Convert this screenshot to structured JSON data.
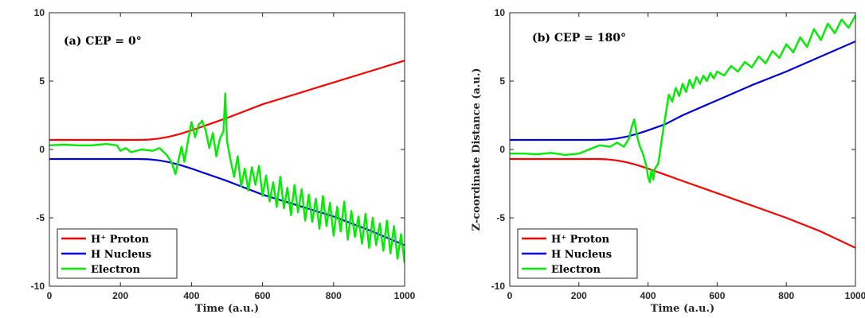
{
  "chart_data": [
    {
      "type": "line",
      "annotation": "(a) CEP = 0°",
      "xlabel": "Time (a.u.)",
      "ylabel": "",
      "xlim": [
        0,
        1000
      ],
      "ylim": [
        -10,
        10
      ],
      "xticks": [
        "0",
        "200",
        "400",
        "600",
        "800",
        "1000"
      ],
      "yticks": [
        "-10",
        "-5",
        "0",
        "5",
        "10"
      ],
      "legend_placement": "bottom-left",
      "series": [
        {
          "name": "H⁺ Proton",
          "color": "#ff0000",
          "x": [
            0,
            250,
            280,
            310,
            340,
            370,
            400,
            450,
            500,
            600,
            700,
            800,
            900,
            1000
          ],
          "y": [
            0.7,
            0.7,
            0.72,
            0.8,
            0.95,
            1.15,
            1.4,
            1.85,
            2.3,
            3.3,
            4.1,
            4.9,
            5.7,
            6.5
          ]
        },
        {
          "name": "H Nucleus",
          "color": "#0000dd",
          "x": [
            0,
            250,
            280,
            310,
            340,
            370,
            400,
            450,
            500,
            600,
            700,
            800,
            900,
            1000
          ],
          "y": [
            -0.7,
            -0.7,
            -0.72,
            -0.8,
            -0.95,
            -1.15,
            -1.4,
            -1.85,
            -2.3,
            -3.3,
            -4.1,
            -4.9,
            -5.9,
            -7.0
          ]
        },
        {
          "name": "Electron",
          "color": "#00ee00",
          "x": [
            0,
            40,
            80,
            120,
            160,
            190,
            200,
            215,
            230,
            260,
            290,
            310,
            330,
            345,
            355,
            365,
            372,
            380,
            390,
            400,
            410,
            420,
            430,
            440,
            450,
            460,
            470,
            480,
            490,
            495,
            500,
            510,
            520,
            530,
            540,
            550,
            560,
            570,
            580,
            590,
            600,
            610,
            620,
            630,
            640,
            650,
            660,
            670,
            680,
            690,
            700,
            710,
            720,
            730,
            740,
            750,
            760,
            770,
            780,
            790,
            800,
            810,
            820,
            830,
            840,
            850,
            860,
            870,
            880,
            890,
            900,
            910,
            920,
            930,
            940,
            950,
            960,
            970,
            980,
            990,
            1000
          ],
          "y": [
            0.3,
            0.35,
            0.3,
            0.3,
            0.4,
            0.3,
            -0.1,
            0.1,
            -0.2,
            0.0,
            -0.1,
            0.1,
            -0.4,
            -1.0,
            -1.8,
            -0.6,
            0.2,
            -0.9,
            0.6,
            2.0,
            0.9,
            1.8,
            2.1,
            1.4,
            0.1,
            1.2,
            -0.5,
            0.8,
            1.3,
            4.1,
            0.6,
            -0.8,
            -2.0,
            -0.5,
            -2.7,
            -1.4,
            -3.0,
            -1.3,
            -2.6,
            -1.2,
            -3.4,
            -1.9,
            -3.8,
            -2.4,
            -4.2,
            -2.0,
            -4.3,
            -2.8,
            -4.8,
            -2.6,
            -4.6,
            -2.9,
            -5.2,
            -3.3,
            -5.3,
            -3.6,
            -5.8,
            -3.4,
            -5.6,
            -3.9,
            -6.3,
            -4.2,
            -6.0,
            -3.8,
            -6.6,
            -4.5,
            -6.4,
            -4.9,
            -6.9,
            -4.7,
            -7.2,
            -5.0,
            -7.0,
            -5.4,
            -7.4,
            -5.2,
            -7.6,
            -5.6,
            -8.0,
            -6.2,
            -8.3
          ]
        }
      ]
    },
    {
      "type": "line",
      "annotation": "(b) CEP = 180°",
      "xlabel": "Time (a.u.)",
      "ylabel": "Z-coordinate Distance (a.u.)",
      "xlim": [
        0,
        1000
      ],
      "ylim": [
        -10,
        10
      ],
      "xticks": [
        "0",
        "200",
        "400",
        "600",
        "800",
        "1000"
      ],
      "yticks": [
        "-10",
        "-5",
        "0",
        "5",
        "10"
      ],
      "legend_placement": "bottom-left",
      "series": [
        {
          "name": "H⁺ Proton",
          "color": "#ff0000",
          "x": [
            0,
            250,
            280,
            310,
            340,
            370,
            400,
            450,
            500,
            600,
            700,
            800,
            900,
            1000
          ],
          "y": [
            -0.7,
            -0.7,
            -0.72,
            -0.8,
            -0.95,
            -1.15,
            -1.4,
            -1.85,
            -2.3,
            -3.2,
            -4.1,
            -5.0,
            -6.0,
            -7.2
          ]
        },
        {
          "name": "H Nucleus",
          "color": "#0000dd",
          "x": [
            0,
            250,
            280,
            310,
            340,
            370,
            400,
            450,
            500,
            600,
            700,
            800,
            900,
            1000
          ],
          "y": [
            0.7,
            0.7,
            0.72,
            0.8,
            0.95,
            1.15,
            1.4,
            1.85,
            2.5,
            3.6,
            4.7,
            5.7,
            6.8,
            7.9
          ]
        },
        {
          "name": "Electron",
          "color": "#00ee00",
          "x": [
            0,
            40,
            80,
            120,
            160,
            200,
            230,
            260,
            290,
            310,
            330,
            345,
            352,
            360,
            368,
            375,
            385,
            395,
            400,
            405,
            410,
            415,
            420,
            430,
            440,
            450,
            460,
            470,
            480,
            490,
            500,
            510,
            520,
            530,
            540,
            550,
            560,
            570,
            580,
            590,
            600,
            620,
            640,
            660,
            680,
            700,
            720,
            740,
            760,
            780,
            800,
            820,
            840,
            860,
            880,
            900,
            920,
            940,
            960,
            980,
            1000
          ],
          "y": [
            -0.3,
            -0.3,
            -0.35,
            -0.25,
            -0.4,
            -0.3,
            0.0,
            0.3,
            0.2,
            0.5,
            0.2,
            0.8,
            1.6,
            2.2,
            1.0,
            0.3,
            -0.3,
            -1.2,
            -2.0,
            -2.4,
            -1.5,
            -2.2,
            -1.4,
            -1.0,
            0.8,
            2.4,
            4.0,
            3.5,
            4.5,
            3.9,
            4.8,
            4.2,
            5.1,
            4.5,
            5.3,
            4.8,
            5.4,
            5.0,
            5.6,
            5.2,
            5.7,
            5.4,
            6.1,
            5.7,
            6.4,
            6.0,
            6.8,
            6.3,
            7.2,
            6.7,
            7.7,
            7.1,
            8.2,
            7.5,
            8.8,
            8.0,
            9.2,
            8.5,
            9.5,
            8.9,
            9.8
          ]
        }
      ]
    }
  ]
}
